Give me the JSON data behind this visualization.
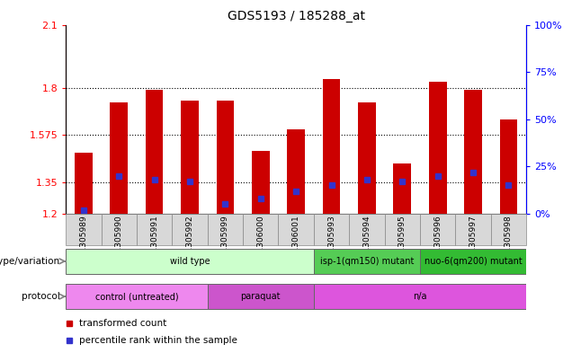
{
  "title": "GDS5193 / 185288_at",
  "samples": [
    "GSM1305989",
    "GSM1305990",
    "GSM1305991",
    "GSM1305992",
    "GSM1305999",
    "GSM1306000",
    "GSM1306001",
    "GSM1305993",
    "GSM1305994",
    "GSM1305995",
    "GSM1305996",
    "GSM1305997",
    "GSM1305998"
  ],
  "transformed_count": [
    1.49,
    1.73,
    1.79,
    1.74,
    1.74,
    1.5,
    1.6,
    1.84,
    1.73,
    1.44,
    1.83,
    1.79,
    1.65
  ],
  "percentile_rank": [
    2,
    20,
    18,
    17,
    5,
    8,
    12,
    15,
    18,
    17,
    20,
    22,
    15
  ],
  "ylim_left": [
    1.2,
    2.1
  ],
  "ylim_right": [
    0,
    100
  ],
  "yticks_left": [
    1.2,
    1.35,
    1.575,
    1.8,
    2.1
  ],
  "yticks_right": [
    0,
    25,
    50,
    75,
    100
  ],
  "bar_color": "#cc0000",
  "dot_color": "#3333cc",
  "genotype_groups": [
    {
      "label": "wild type",
      "start": 0,
      "end": 6,
      "color": "#ccffcc"
    },
    {
      "label": "isp-1(qm150) mutant",
      "start": 7,
      "end": 9,
      "color": "#55cc55"
    },
    {
      "label": "nuo-6(qm200) mutant",
      "start": 10,
      "end": 12,
      "color": "#33bb33"
    }
  ],
  "protocol_groups": [
    {
      "label": "control (untreated)",
      "start": 0,
      "end": 3,
      "color": "#ee88ee"
    },
    {
      "label": "paraquat",
      "start": 4,
      "end": 6,
      "color": "#cc55cc"
    },
    {
      "label": "n/a",
      "start": 7,
      "end": 12,
      "color": "#dd55dd"
    }
  ],
  "legend_items": [
    {
      "color": "#cc0000",
      "label": "transformed count"
    },
    {
      "color": "#3333cc",
      "label": "percentile rank within the sample"
    }
  ],
  "bar_width": 0.5,
  "tick_label_bg": "#d8d8d8"
}
